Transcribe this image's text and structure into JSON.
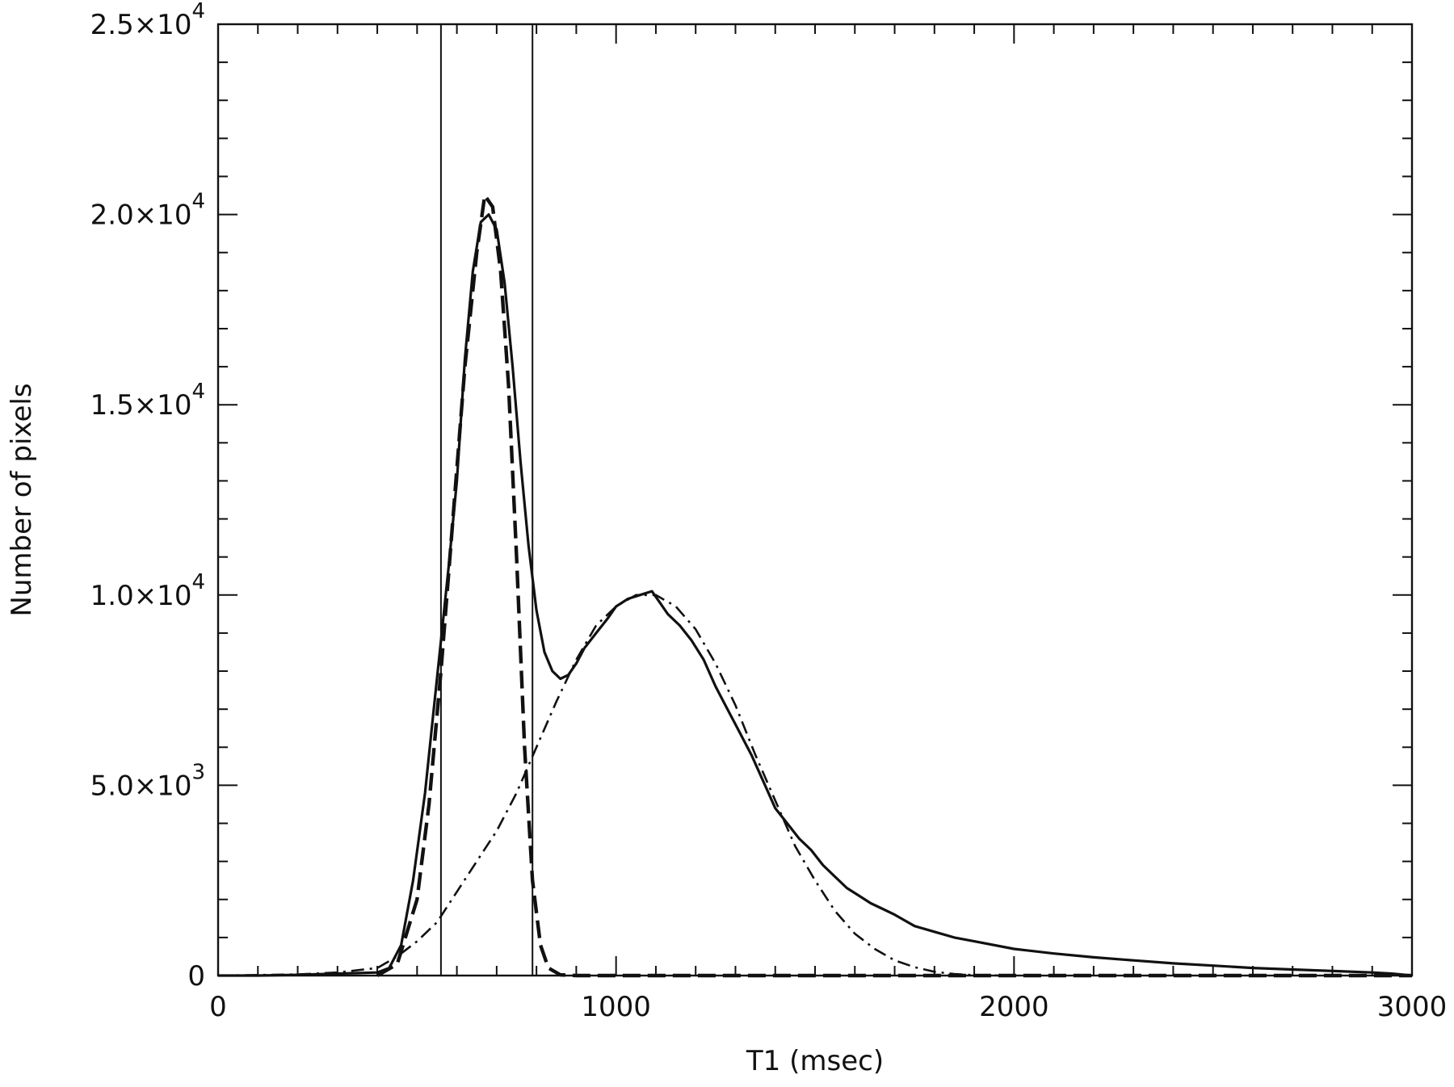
{
  "chart_data": {
    "type": "line",
    "title": "",
    "xlabel": "T1 (msec)",
    "ylabel": "Number of pixels",
    "xlim": [
      0,
      3000
    ],
    "ylim": [
      0,
      25000
    ],
    "xticks": [
      0,
      1000,
      2000,
      3000
    ],
    "xtick_labels": [
      "0",
      "1000",
      "2000",
      "3000"
    ],
    "yticks": [
      0,
      5000,
      10000,
      15000,
      20000,
      25000
    ],
    "ytick_labels": [
      {
        "value": 0,
        "mantissa": "0",
        "exp": ""
      },
      {
        "value": 5000,
        "mantissa": "5.0×10",
        "exp": "3"
      },
      {
        "value": 10000,
        "mantissa": "1.0×10",
        "exp": "4"
      },
      {
        "value": 15000,
        "mantissa": "1.5×10",
        "exp": "4"
      },
      {
        "value": 20000,
        "mantissa": "2.0×10",
        "exp": "4"
      },
      {
        "value": 25000,
        "mantissa": "2.5×10",
        "exp": "4"
      }
    ],
    "grid": false,
    "legend": "none",
    "vertical_lines": [
      560,
      790
    ],
    "series": [
      {
        "style": "solid",
        "x": [
          0,
          100,
          200,
          300,
          400,
          430,
          460,
          490,
          520,
          540,
          560,
          580,
          600,
          620,
          640,
          660,
          680,
          700,
          720,
          740,
          760,
          780,
          800,
          820,
          840,
          860,
          880,
          900,
          920,
          950,
          980,
          1000,
          1030,
          1060,
          1090,
          1110,
          1130,
          1160,
          1190,
          1220,
          1250,
          1280,
          1310,
          1340,
          1370,
          1400,
          1430,
          1460,
          1490,
          1520,
          1550,
          1580,
          1610,
          1640,
          1670,
          1700,
          1750,
          1800,
          1850,
          1900,
          2000,
          2100,
          2200,
          2300,
          2400,
          2500,
          2600,
          2700,
          2800,
          2900,
          2950,
          3000
        ],
        "y": [
          0,
          0,
          20,
          50,
          80,
          200,
          800,
          2500,
          4800,
          6800,
          8800,
          10800,
          13000,
          16200,
          18500,
          19800,
          20000,
          19600,
          18200,
          16000,
          13500,
          11300,
          9600,
          8500,
          8000,
          7800,
          7900,
          8200,
          8600,
          9000,
          9400,
          9700,
          9900,
          10000,
          10100,
          9800,
          9500,
          9200,
          8800,
          8300,
          7600,
          7000,
          6400,
          5800,
          5100,
          4400,
          4000,
          3600,
          3300,
          2900,
          2600,
          2300,
          2100,
          1900,
          1750,
          1600,
          1300,
          1150,
          1000,
          900,
          700,
          580,
          480,
          400,
          320,
          260,
          200,
          160,
          120,
          80,
          50,
          0
        ]
      },
      {
        "style": "dashed",
        "x": [
          400,
          450,
          500,
          530,
          560,
          590,
          620,
          650,
          670,
          690,
          710,
          730,
          750,
          770,
          790,
          810,
          830,
          860,
          900,
          1000,
          1500,
          2000,
          3000
        ],
        "y": [
          0,
          300,
          2000,
          4500,
          8000,
          12000,
          16000,
          19000,
          20500,
          20200,
          18500,
          15500,
          11000,
          6000,
          2500,
          800,
          200,
          20,
          0,
          0,
          0,
          0,
          0
        ]
      },
      {
        "style": "dash-dot",
        "x": [
          0,
          200,
          300,
          400,
          450,
          500,
          550,
          600,
          650,
          700,
          750,
          800,
          850,
          900,
          950,
          1000,
          1050,
          1100,
          1150,
          1200,
          1250,
          1300,
          1350,
          1400,
          1450,
          1500,
          1550,
          1600,
          1650,
          1700,
          1750,
          1800,
          1850,
          1900,
          2000
        ],
        "y": [
          0,
          30,
          80,
          200,
          500,
          900,
          1400,
          2200,
          3000,
          3800,
          4800,
          6000,
          7200,
          8300,
          9200,
          9700,
          10000,
          10000,
          9700,
          9100,
          8200,
          7100,
          5800,
          4600,
          3400,
          2500,
          1700,
          1100,
          700,
          400,
          220,
          100,
          40,
          10,
          0
        ]
      }
    ]
  }
}
